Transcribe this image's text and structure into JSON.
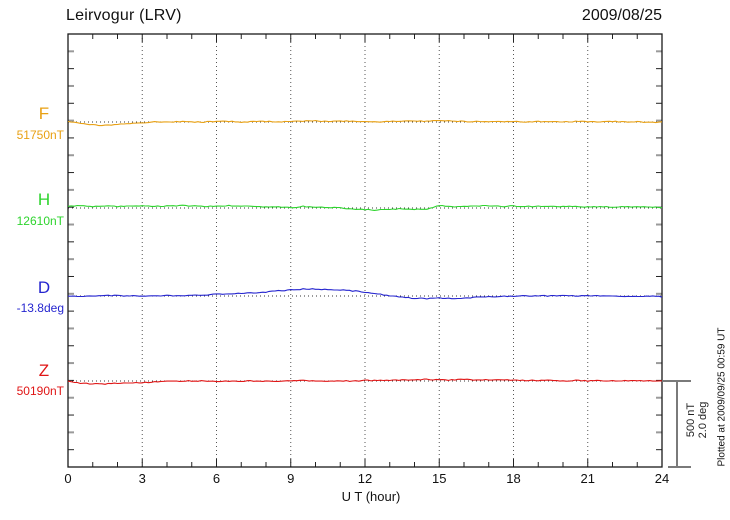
{
  "header": {
    "title": "Leirvogur (LRV)",
    "date": "2009/08/25"
  },
  "chart_data": {
    "type": "line",
    "title": "Leirvogur (LRV) magnetogram",
    "xlabel": "U T (hour)",
    "xlim": [
      0,
      24
    ],
    "x_ticks": [
      0,
      3,
      6,
      9,
      12,
      15,
      18,
      21,
      24
    ],
    "x_step_hours": 0.5,
    "grid": "dotted vertical lines every 3 hours; dotted horizontal baseline per trace",
    "legend_position": "left margin",
    "scale_bar": {
      "nt_label": "500 nT",
      "deg_label": "2.0 deg",
      "nt": 500,
      "deg": 2.0
    },
    "series": [
      {
        "name": "F",
        "label": "51750nT",
        "unit": "nT",
        "base": 51750,
        "color": "#e8a013",
        "values": [
          51750,
          51744,
          51733,
          51730,
          51736,
          51741,
          51747,
          51750,
          51750,
          51753,
          51750,
          51750,
          51753,
          51753,
          51750,
          51753,
          51753,
          51750,
          51753,
          51756,
          51756,
          51753,
          51756,
          51753,
          51753,
          51750,
          51753,
          51756,
          51753,
          51756,
          51759,
          51756,
          51753,
          51753,
          51753,
          51753,
          51753,
          51750,
          51753,
          51753,
          51750,
          51753,
          51753,
          51750,
          51753,
          51750,
          51753,
          51747,
          51750
        ]
      },
      {
        "name": "H",
        "label": "12610nT",
        "unit": "nT",
        "base": 12610,
        "color": "#2ed42e",
        "values": [
          12622,
          12622,
          12619,
          12622,
          12619,
          12622,
          12622,
          12619,
          12622,
          12624,
          12622,
          12619,
          12622,
          12624,
          12619,
          12619,
          12616,
          12616,
          12613,
          12619,
          12616,
          12613,
          12610,
          12604,
          12601,
          12598,
          12601,
          12607,
          12601,
          12604,
          12625,
          12616,
          12619,
          12622,
          12622,
          12619,
          12622,
          12619,
          12619,
          12622,
          12619,
          12619,
          12616,
          12619,
          12616,
          12619,
          12616,
          12616,
          12613
        ]
      },
      {
        "name": "D",
        "label": "-13.8deg",
        "unit": "deg",
        "base": -13.8,
        "color": "#2525cf",
        "values": [
          -13.8,
          -13.81,
          -13.8,
          -13.79,
          -13.79,
          -13.8,
          -13.8,
          -13.79,
          -13.79,
          -13.79,
          -13.78,
          -13.78,
          -13.76,
          -13.75,
          -13.74,
          -13.73,
          -13.71,
          -13.68,
          -13.66,
          -13.64,
          -13.64,
          -13.65,
          -13.66,
          -13.68,
          -13.71,
          -13.75,
          -13.8,
          -13.83,
          -13.85,
          -13.86,
          -13.85,
          -13.86,
          -13.85,
          -13.83,
          -13.82,
          -13.81,
          -13.8,
          -13.8,
          -13.79,
          -13.8,
          -13.79,
          -13.8,
          -13.79,
          -13.8,
          -13.79,
          -13.81,
          -13.82,
          -13.8,
          -13.82
        ]
      },
      {
        "name": "Z",
        "label": "50190nT",
        "unit": "nT",
        "base": 50190,
        "color": "#e01515",
        "values": [
          50190,
          50178,
          50173,
          50173,
          50176,
          50178,
          50181,
          50184,
          50187,
          50190,
          50190,
          50190,
          50187,
          50190,
          50190,
          50190,
          50190,
          50190,
          50190,
          50193,
          50190,
          50190,
          50190,
          50190,
          50193,
          50193,
          50193,
          50196,
          50196,
          50199,
          50196,
          50196,
          50199,
          50196,
          50196,
          50196,
          50196,
          50193,
          50193,
          50193,
          50190,
          50193,
          50190,
          50193,
          50190,
          50193,
          50193,
          50190,
          50190
        ]
      }
    ]
  },
  "footer": {
    "plotted_at": "Plotted at 2009/09/25 00:59 UT"
  }
}
